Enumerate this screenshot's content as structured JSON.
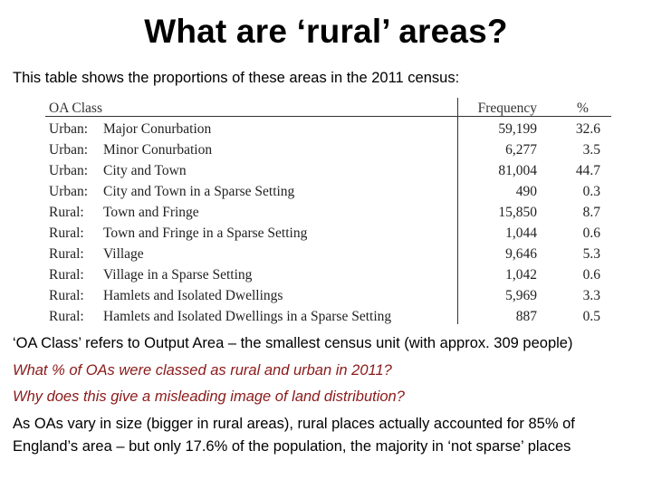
{
  "title": "What are ‘rural’ areas?",
  "intro": "This table shows the proportions of these areas in the 2011 census:",
  "table": {
    "headers": {
      "class": "OA Class",
      "frequency": "Frequency",
      "percent": "%"
    },
    "rows": [
      {
        "type": "Urban:",
        "name": "Major Conurbation",
        "frequency": "59,199",
        "percent": "32.6"
      },
      {
        "type": "Urban:",
        "name": "Minor Conurbation",
        "frequency": "6,277",
        "percent": "3.5"
      },
      {
        "type": "Urban:",
        "name": "City and Town",
        "frequency": "81,004",
        "percent": "44.7"
      },
      {
        "type": "Urban:",
        "name": "City and Town in a Sparse Setting",
        "frequency": "490",
        "percent": "0.3"
      },
      {
        "type": "Rural:",
        "name": "Town and Fringe",
        "frequency": "15,850",
        "percent": "8.7"
      },
      {
        "type": "Rural:",
        "name": "Town and Fringe in a Sparse Setting",
        "frequency": "1,044",
        "percent": "0.6"
      },
      {
        "type": "Rural:",
        "name": "Village",
        "frequency": "9,646",
        "percent": "5.3"
      },
      {
        "type": "Rural:",
        "name": "Village in a Sparse Setting",
        "frequency": "1,042",
        "percent": "0.6"
      },
      {
        "type": "Rural:",
        "name": "Hamlets and Isolated Dwellings",
        "frequency": "5,969",
        "percent": "3.3"
      },
      {
        "type": "Rural:",
        "name": "Hamlets and Isolated Dwellings in a Sparse Setting",
        "frequency": "887",
        "percent": "0.5"
      }
    ]
  },
  "notes": {
    "definition": "‘OA Class’ refers to Output Area – the smallest census unit (with approx. 309 people)",
    "question1": "What % of OAs were classed as rural and urban in 2011?",
    "question2": "Why does this give a misleading image of land distribution?",
    "answer_line1": "As OAs vary in size (bigger in rural areas), rural places actually accounted for 85% of",
    "answer_line2": "England’s area – but only 17.6% of the population, the majority in ‘not sparse’ places"
  },
  "colors": {
    "question": "#8b1a1a",
    "text": "#000000"
  }
}
